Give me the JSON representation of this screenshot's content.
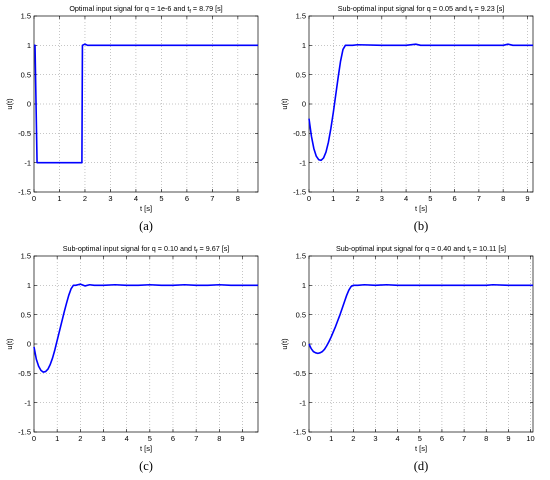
{
  "chart_data": [
    {
      "type": "line",
      "panel_label": "(a)",
      "title_parts": [
        "Optimal input signal for q = 1e-6 and t",
        "f",
        " = 8.79 [s]"
      ],
      "xlabel": "t [s]",
      "ylabel": "u(t)",
      "xlim": [
        0,
        8.79
      ],
      "ylim": [
        -1.5,
        1.5
      ],
      "xticks": [
        0,
        1,
        2,
        3,
        4,
        5,
        6,
        7,
        8
      ],
      "yticks": [
        -1.5,
        -1,
        -0.5,
        0,
        0.5,
        1,
        1.5
      ],
      "grid": true,
      "line_color": "#0000ff",
      "series": [
        {
          "x": [
            0,
            0.04,
            0.12,
            0.14,
            1.88,
            1.9,
            2.0,
            2.1,
            2.3,
            8.79
          ],
          "y": [
            1,
            1,
            -1,
            -1,
            -1,
            1,
            1.02,
            1.0,
            1.0,
            1.0
          ]
        }
      ]
    },
    {
      "type": "line",
      "panel_label": "(b)",
      "title_parts": [
        "Sub-optimal input signal for q = 0.05 and t",
        "f",
        " = 9.23 [s]"
      ],
      "xlabel": "t [s]",
      "ylabel": "u(t)",
      "xlim": [
        0,
        9.23
      ],
      "ylim": [
        -1.5,
        1.5
      ],
      "xticks": [
        0,
        1,
        2,
        3,
        4,
        5,
        6,
        7,
        8,
        9
      ],
      "yticks": [
        -1.5,
        -1,
        -0.5,
        0,
        0.5,
        1,
        1.5
      ],
      "grid": true,
      "line_color": "#0000ff",
      "series": [
        {
          "x": [
            0,
            0.1,
            0.2,
            0.3,
            0.4,
            0.5,
            0.6,
            0.7,
            0.8,
            0.9,
            1.0,
            1.1,
            1.2,
            1.3,
            1.4,
            1.5,
            1.6,
            1.8,
            2.0,
            3.0,
            4.0,
            4.4,
            4.6,
            5.0,
            6.0,
            7.0,
            8.0,
            8.2,
            8.4,
            9.0,
            9.23
          ],
          "y": [
            -0.25,
            -0.55,
            -0.76,
            -0.89,
            -0.95,
            -0.96,
            -0.92,
            -0.82,
            -0.65,
            -0.42,
            -0.15,
            0.15,
            0.45,
            0.73,
            0.93,
            1.0,
            1.0,
            1.0,
            1.01,
            1.0,
            1.0,
            1.02,
            1.0,
            1.0,
            1.0,
            1.0,
            1.0,
            1.02,
            1.0,
            1.0,
            1.0
          ]
        }
      ]
    },
    {
      "type": "line",
      "panel_label": "(c)",
      "title_parts": [
        "Sub-optimal input signal for q = 0.10 and t",
        "f",
        " = 9.67 [s]"
      ],
      "xlabel": "t [s]",
      "ylabel": "u(t)",
      "xlim": [
        0,
        9.67
      ],
      "ylim": [
        -1.5,
        1.5
      ],
      "xticks": [
        0,
        1,
        2,
        3,
        4,
        5,
        6,
        7,
        8,
        9
      ],
      "yticks": [
        -1.5,
        -1,
        -0.5,
        0,
        0.5,
        1,
        1.5
      ],
      "grid": true,
      "line_color": "#0000ff",
      "series": [
        {
          "x": [
            0,
            0.1,
            0.2,
            0.3,
            0.4,
            0.5,
            0.6,
            0.7,
            0.8,
            0.9,
            1.0,
            1.1,
            1.2,
            1.3,
            1.4,
            1.5,
            1.6,
            1.7,
            1.8,
            2.0,
            2.2,
            2.4,
            2.6,
            3.0,
            3.5,
            4.0,
            4.5,
            5.0,
            5.5,
            6.0,
            6.5,
            7.0,
            7.5,
            8.0,
            8.5,
            9.0,
            9.67
          ],
          "y": [
            -0.05,
            -0.26,
            -0.38,
            -0.45,
            -0.48,
            -0.47,
            -0.43,
            -0.35,
            -0.24,
            -0.1,
            0.06,
            0.22,
            0.38,
            0.54,
            0.69,
            0.83,
            0.94,
            1.0,
            1.0,
            1.02,
            0.99,
            1.01,
            1.0,
            1.0,
            1.01,
            1.0,
            1.0,
            1.01,
            1.0,
            1.0,
            1.01,
            1.0,
            1.0,
            1.01,
            1.0,
            1.0,
            1.0
          ]
        }
      ]
    },
    {
      "type": "line",
      "panel_label": "(d)",
      "title_parts": [
        "Sub-optimal input signal for q = 0.40 and t",
        "f",
        " = 10.11 [s]"
      ],
      "xlabel": "t [s]",
      "ylabel": "u(t)",
      "xlim": [
        0,
        10.11
      ],
      "ylim": [
        -1.5,
        1.5
      ],
      "xticks": [
        0,
        1,
        2,
        3,
        4,
        5,
        6,
        7,
        8,
        9,
        10
      ],
      "yticks": [
        -1.5,
        -1,
        -0.5,
        0,
        0.5,
        1,
        1.5
      ],
      "grid": true,
      "line_color": "#0000ff",
      "series": [
        {
          "x": [
            0,
            0.1,
            0.2,
            0.3,
            0.4,
            0.5,
            0.6,
            0.7,
            0.8,
            0.9,
            1.0,
            1.1,
            1.2,
            1.3,
            1.4,
            1.5,
            1.6,
            1.7,
            1.8,
            1.9,
            2.0,
            2.2,
            2.5,
            3.0,
            3.5,
            4.0,
            5.0,
            6.0,
            7.0,
            8.0,
            8.3,
            9.0,
            10.11
          ],
          "y": [
            0.0,
            -0.08,
            -0.13,
            -0.15,
            -0.16,
            -0.15,
            -0.13,
            -0.09,
            -0.03,
            0.04,
            0.12,
            0.21,
            0.3,
            0.4,
            0.5,
            0.61,
            0.72,
            0.83,
            0.92,
            0.98,
            1.0,
            1.0,
            1.01,
            1.0,
            1.01,
            1.0,
            1.0,
            1.0,
            1.0,
            1.0,
            1.01,
            1.0,
            1.0
          ]
        }
      ]
    }
  ]
}
